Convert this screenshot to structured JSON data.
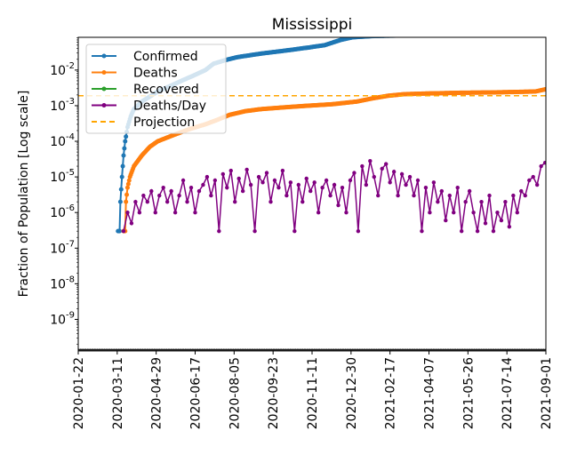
{
  "chart_data": {
    "type": "line",
    "title": "Mississippi",
    "xlabel": "",
    "ylabel": "Fraction of Population [Log scale]",
    "yscale": "log",
    "ylim": [
      1.3e-10,
      0.083
    ],
    "x_origin": "2020-01-22",
    "xlim_days": [
      0,
      588
    ],
    "x_tick_labels": [
      "2020-01-22",
      "2020-03-11",
      "2020-04-29",
      "2020-06-17",
      "2020-08-05",
      "2020-09-23",
      "2020-11-11",
      "2020-12-30",
      "2021-02-17",
      "2021-04-07",
      "2021-05-26",
      "2021-07-14",
      "2021-09-01"
    ],
    "y_ticks": [
      {
        "exp": "-9",
        "value": 1e-09
      },
      {
        "exp": "-8",
        "value": 1e-08
      },
      {
        "exp": "-7",
        "value": 1e-07
      },
      {
        "exp": "-6",
        "value": 1e-06
      },
      {
        "exp": "-5",
        "value": 1e-05
      },
      {
        "exp": "-4",
        "value": 0.0001
      },
      {
        "exp": "-3",
        "value": 0.001
      },
      {
        "exp": "-2",
        "value": 0.01
      }
    ],
    "legend": {
      "placement": "upper-left"
    },
    "series": [
      {
        "name": "Confirmed",
        "color": "#1f77b4",
        "points": [
          [
            50,
            3e-07
          ],
          [
            52,
            3e-07
          ],
          [
            53,
            2e-06
          ],
          [
            55,
            1e-05
          ],
          [
            57,
            4e-05
          ],
          [
            59,
            0.0001
          ],
          [
            62,
            0.00025
          ],
          [
            66,
            0.0005
          ],
          [
            70,
            0.0008
          ],
          [
            80,
            0.0013
          ],
          [
            90,
            0.0018
          ],
          [
            100,
            0.0025
          ],
          [
            115,
            0.0035
          ],
          [
            130,
            0.005
          ],
          [
            145,
            0.007
          ],
          [
            160,
            0.01
          ],
          [
            170,
            0.015
          ],
          [
            185,
            0.019
          ],
          [
            200,
            0.023
          ],
          [
            230,
            0.029
          ],
          [
            260,
            0.035
          ],
          [
            290,
            0.043
          ],
          [
            310,
            0.05
          ],
          [
            330,
            0.07
          ],
          [
            345,
            0.083
          ],
          [
            370,
            0.09
          ],
          [
            420,
            0.095
          ],
          [
            480,
            0.098
          ],
          [
            588,
            0.11
          ]
        ]
      },
      {
        "name": "Deaths",
        "color": "#ff7f0e",
        "points": [
          [
            57,
            3e-07
          ],
          [
            59,
            3e-07
          ],
          [
            60,
            2e-06
          ],
          [
            62,
            5e-06
          ],
          [
            65,
            1e-05
          ],
          [
            70,
            2e-05
          ],
          [
            80,
            4e-05
          ],
          [
            90,
            7e-05
          ],
          [
            100,
            0.0001
          ],
          [
            120,
            0.00015
          ],
          [
            140,
            0.00022
          ],
          [
            160,
            0.0003
          ],
          [
            175,
            0.0004
          ],
          [
            190,
            0.00055
          ],
          [
            210,
            0.0007
          ],
          [
            230,
            0.0008
          ],
          [
            260,
            0.0009
          ],
          [
            290,
            0.001
          ],
          [
            320,
            0.0011
          ],
          [
            350,
            0.0013
          ],
          [
            370,
            0.0016
          ],
          [
            390,
            0.0019
          ],
          [
            410,
            0.0021
          ],
          [
            440,
            0.0022
          ],
          [
            480,
            0.0023
          ],
          [
            520,
            0.00235
          ],
          [
            560,
            0.00245
          ],
          [
            575,
            0.0025
          ],
          [
            588,
            0.0029
          ]
        ]
      },
      {
        "name": "Recovered",
        "color": "#2ca02c",
        "all_zero": true
      },
      {
        "name": "Deaths/Day",
        "color": "#800080",
        "start_day": 57,
        "step_days": 5,
        "values": [
          3e-07,
          1e-06,
          5e-07,
          2e-06,
          1e-06,
          3e-06,
          2e-06,
          4e-06,
          1e-06,
          3e-06,
          5e-06,
          2e-06,
          4e-06,
          1e-06,
          3e-06,
          8e-06,
          2e-06,
          5e-06,
          1e-06,
          4e-06,
          6e-06,
          1e-05,
          3e-06,
          8e-06,
          3e-07,
          1.2e-05,
          5e-06,
          1.5e-05,
          2e-06,
          9e-06,
          4e-06,
          1.6e-05,
          6e-06,
          3e-07,
          1e-05,
          7e-06,
          1.3e-05,
          2e-06,
          8e-06,
          5e-06,
          1.5e-05,
          3e-06,
          7e-06,
          3e-07,
          6e-06,
          2e-06,
          9e-06,
          4e-06,
          7e-06,
          1e-06,
          5e-06,
          8e-06,
          3e-06,
          6e-06,
          1.6e-06,
          5e-06,
          1e-06,
          8e-06,
          1.3e-05,
          3e-07,
          2e-05,
          6e-06,
          2.8e-05,
          1e-05,
          3e-06,
          1.7e-05,
          2.3e-05,
          7e-06,
          1.4e-05,
          3e-06,
          1.2e-05,
          6e-06,
          1e-05,
          3e-06,
          8e-06,
          3e-07,
          5e-06,
          1e-06,
          7e-06,
          2e-06,
          4e-06,
          6e-07,
          3e-06,
          1e-06,
          5e-06,
          3e-07,
          2e-06,
          4e-06,
          1e-06,
          3e-07,
          2e-06,
          5e-07,
          3e-06,
          3e-07,
          1e-06,
          6e-07,
          2e-06,
          4e-07,
          3e-06,
          1e-06,
          4e-06,
          3e-06,
          8e-06,
          1e-05,
          6e-06,
          2e-05,
          2.5e-05
        ]
      },
      {
        "name": "Projection",
        "color": "#ffa500",
        "style": "dashed",
        "value": 0.0019
      }
    ]
  }
}
